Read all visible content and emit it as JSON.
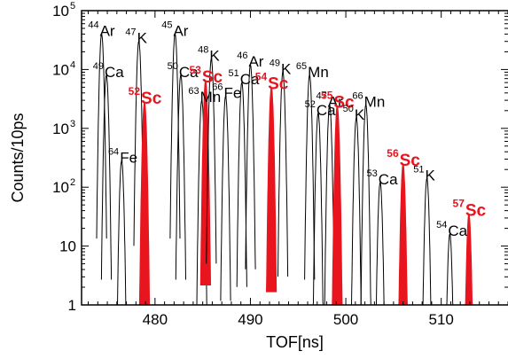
{
  "chart_data": {
    "type": "line",
    "xlabel": "TOF[ns]",
    "ylabel": "Counts/10ps",
    "xlim": [
      472.3,
      517
    ],
    "ylim": [
      1,
      100000
    ],
    "yscale": "log",
    "x_ticks": [
      480,
      490,
      500,
      510
    ],
    "y_ticks": [
      {
        "value": 1,
        "label": "1",
        "exp": ""
      },
      {
        "value": 10,
        "label": "10",
        "exp": ""
      },
      {
        "value": 100,
        "label": "10",
        "exp": "2"
      },
      {
        "value": 1000,
        "label": "10",
        "exp": "3"
      },
      {
        "value": 10000,
        "label": "10",
        "exp": "4"
      },
      {
        "value": 100000,
        "label": "10",
        "exp": "5"
      }
    ],
    "colors": {
      "black_peaks": "#000000",
      "sc_peaks": "#e8141e"
    },
    "peaks": [
      {
        "mass": "44",
        "element": "Ar",
        "tof": 474.4,
        "counts": 40000,
        "highlight": false
      },
      {
        "mass": "49",
        "element": "Ca",
        "tof": 474.9,
        "counts": 8000,
        "highlight": false
      },
      {
        "mass": "64",
        "element": "Fe",
        "tof": 476.5,
        "counts": 280,
        "highlight": false
      },
      {
        "mass": "47",
        "element": "K",
        "tof": 478.3,
        "counts": 30000,
        "highlight": false
      },
      {
        "mass": "52",
        "element": "Sc",
        "tof": 478.9,
        "counts": 2800,
        "highlight": true
      },
      {
        "mass": "45",
        "element": "Ar",
        "tof": 482.1,
        "counts": 40000,
        "highlight": false
      },
      {
        "mass": "50",
        "element": "Ca",
        "tof": 482.7,
        "counts": 8000,
        "highlight": false
      },
      {
        "mass": "63",
        "element": "Mn",
        "tof": 484.9,
        "counts": 3000,
        "highlight": false
      },
      {
        "mass": "53",
        "element": "Sc",
        "tof": 485.3,
        "counts": 6500,
        "highlight": true
      },
      {
        "mass": "48",
        "element": "K",
        "tof": 485.9,
        "counts": 15000,
        "highlight": false
      },
      {
        "mass": "66",
        "element": "Fe",
        "tof": 487.4,
        "counts": 3500,
        "highlight": false
      },
      {
        "mass": "51",
        "element": "Ca",
        "tof": 489.1,
        "counts": 6000,
        "highlight": false
      },
      {
        "mass": "46",
        "element": "Ar",
        "tof": 490.0,
        "counts": 12000,
        "highlight": false
      },
      {
        "mass": "54",
        "element": "Sc",
        "tof": 492.2,
        "counts": 5000,
        "highlight": true
      },
      {
        "mass": "49",
        "element": "K",
        "tof": 493.4,
        "counts": 9000,
        "highlight": false
      },
      {
        "mass": "65",
        "element": "Mn",
        "tof": 496.2,
        "counts": 8000,
        "highlight": false
      },
      {
        "mass": "52",
        "element": "Ca",
        "tof": 497.1,
        "counts": 1800,
        "highlight": false
      },
      {
        "mass": "47",
        "element": "Ar",
        "tof": 498.3,
        "counts": 2500,
        "highlight": false
      },
      {
        "mass": "55",
        "element": "Sc",
        "tof": 499.1,
        "counts": 2400,
        "highlight": true
      },
      {
        "mass": "50",
        "element": "K",
        "tof": 501.1,
        "counts": 1500,
        "highlight": false
      },
      {
        "mass": "66",
        "element": "Mn",
        "tof": 502.1,
        "counts": 2500,
        "highlight": false
      },
      {
        "mass": "53",
        "element": "Ca",
        "tof": 503.6,
        "counts": 120,
        "highlight": false
      },
      {
        "mass": "56",
        "element": "Sc",
        "tof": 506.0,
        "counts": 250,
        "highlight": true
      },
      {
        "mass": "51",
        "element": "K",
        "tof": 508.5,
        "counts": 140,
        "highlight": false
      },
      {
        "mass": "54",
        "element": "Ca",
        "tof": 510.9,
        "counts": 16,
        "highlight": false
      },
      {
        "mass": "57",
        "element": "Sc",
        "tof": 512.9,
        "counts": 35,
        "highlight": true
      }
    ]
  }
}
